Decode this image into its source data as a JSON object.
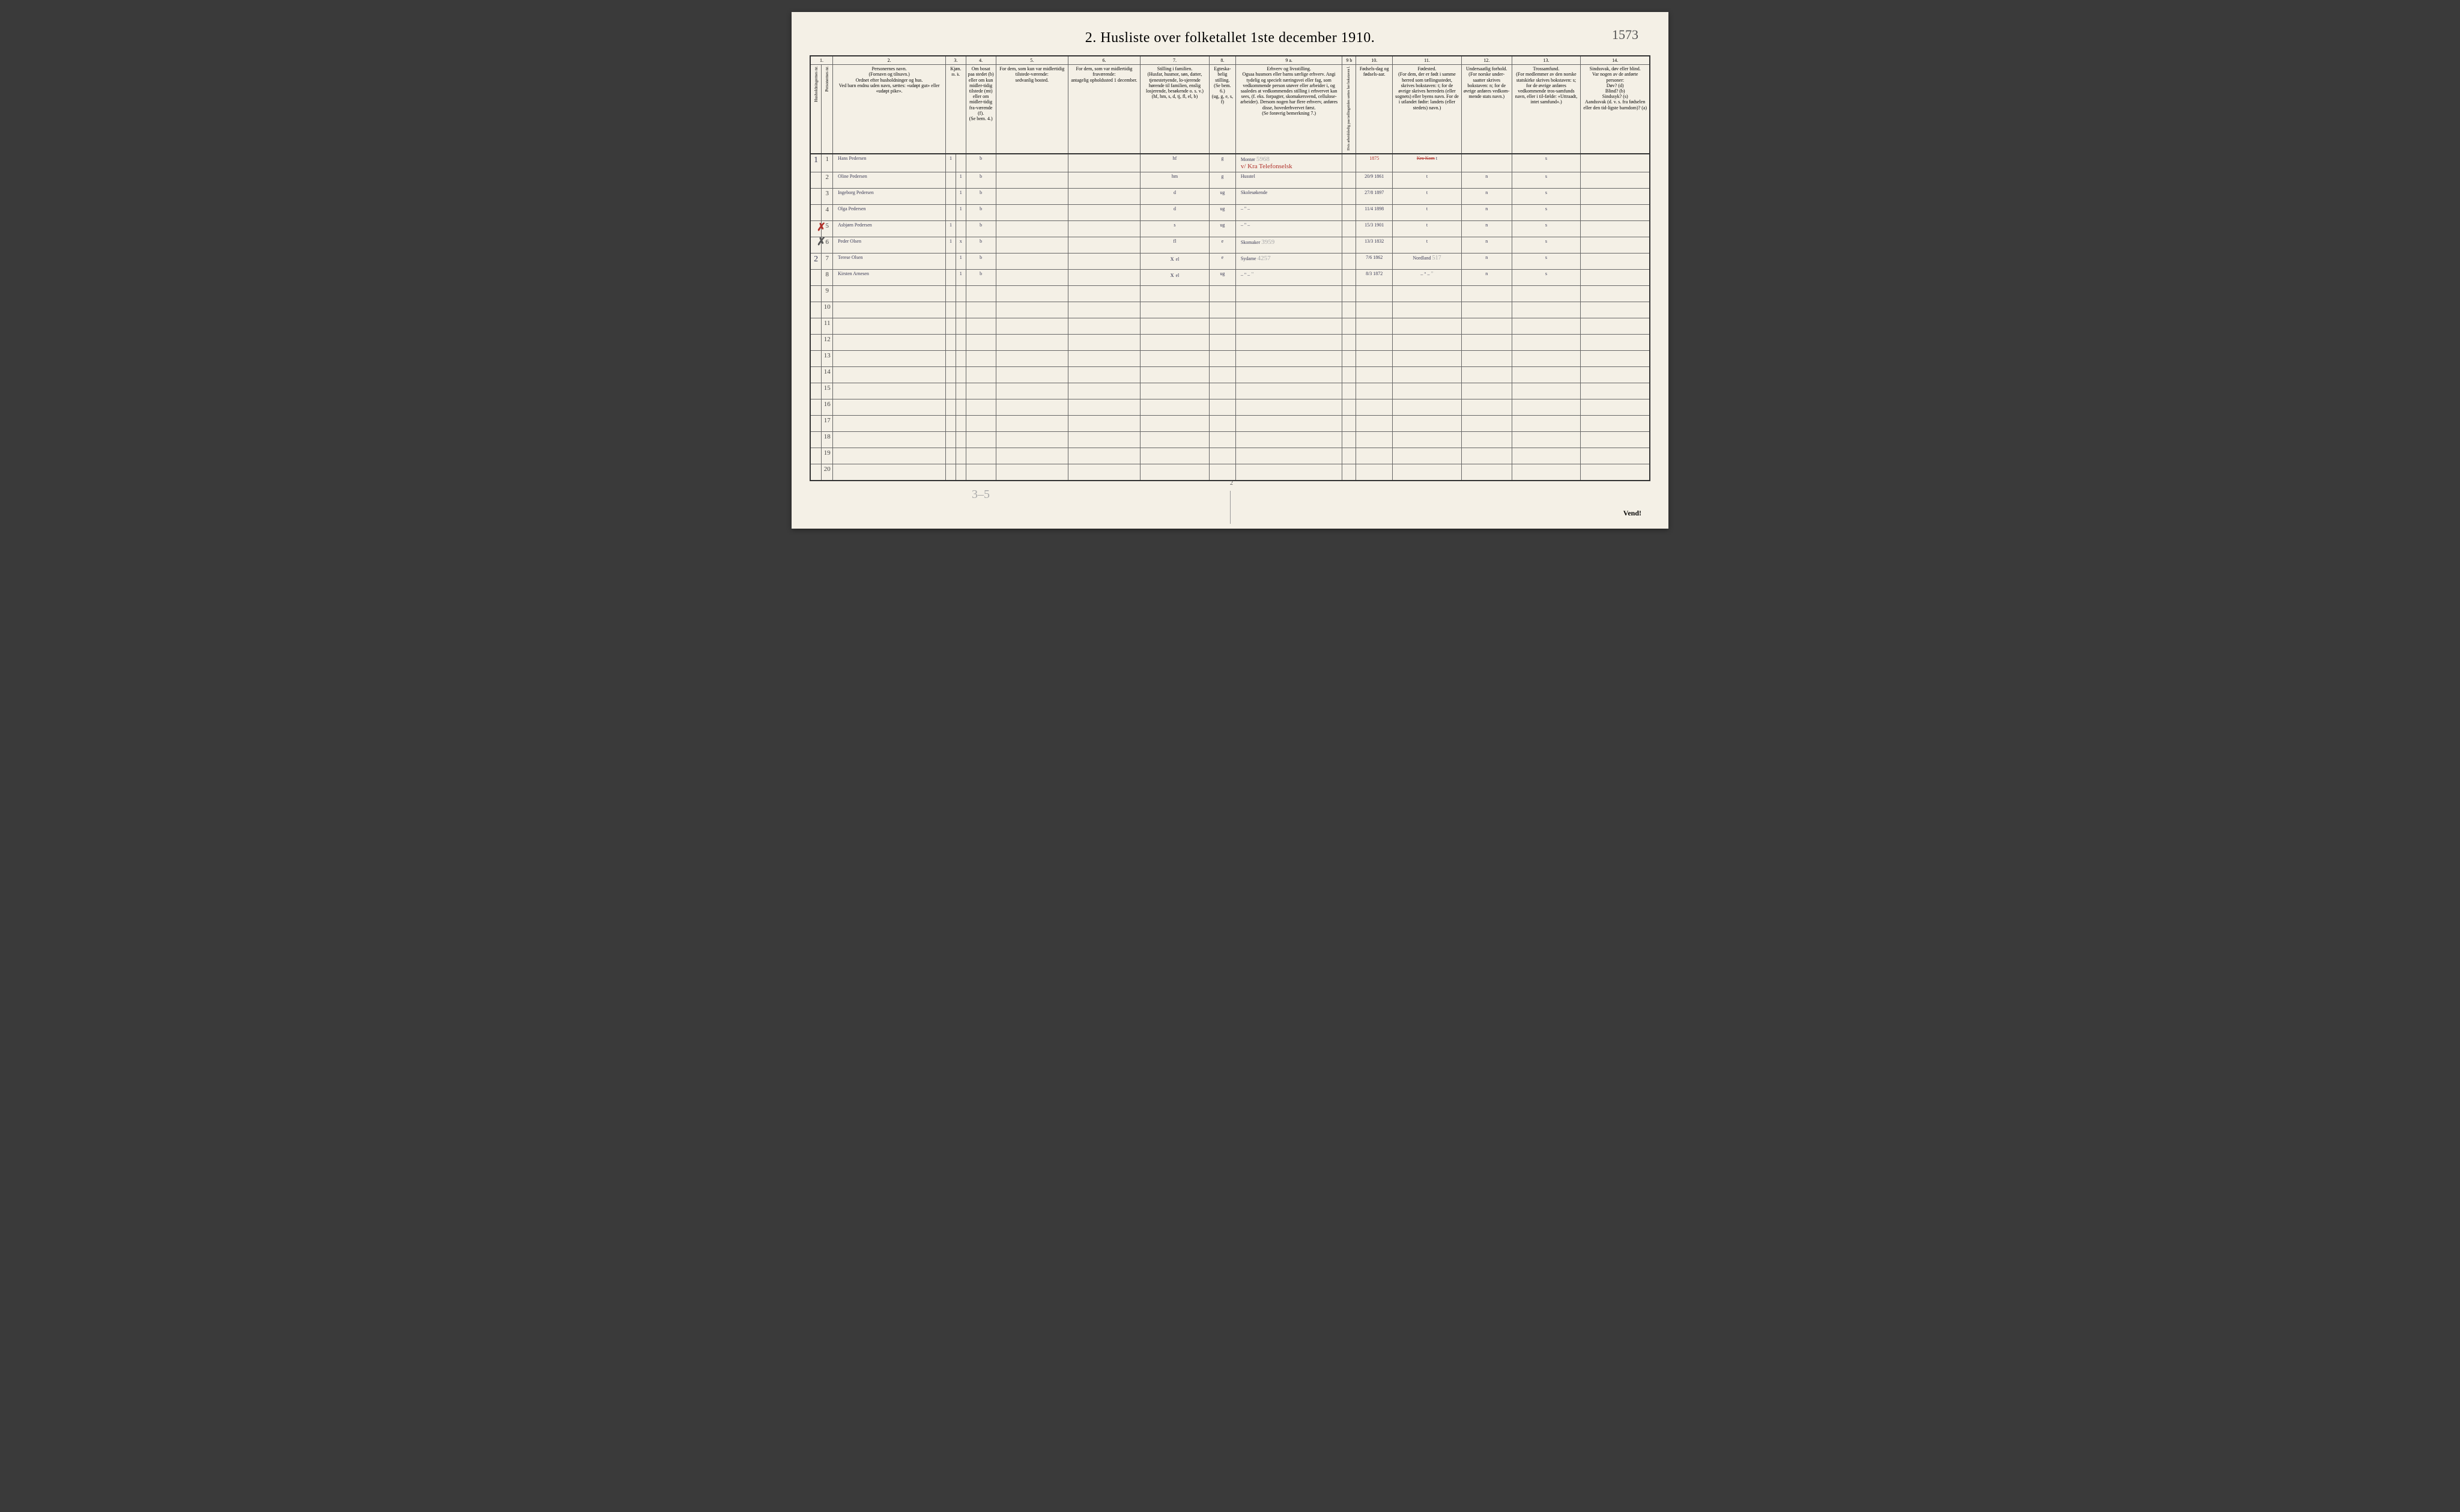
{
  "title": "2.  Husliste over folketallet 1ste december 1910.",
  "corner_note": "1573",
  "pencil_bottom": "3–5",
  "foot_pagenum": "2",
  "vend": "Vend!",
  "col_numbers": [
    "1.",
    "2.",
    "3.",
    "4.",
    "5.",
    "6.",
    "7.",
    "8.",
    "9 a.",
    "9 b",
    "10.",
    "11.",
    "12.",
    "13.",
    "14."
  ],
  "headers": {
    "c1a": "Husholdningernes nr.",
    "c1b": "Personernes nr.",
    "c2": "Personernes navn.\n(Fornavn og tilnavn.)\nOrdnet efter husholdninger og hus.\nVed barn endnu uden navn, sættes: «udøpt gut» eller «udøpt pike».",
    "c3a": "Kjøn.",
    "c3m": "Mand.",
    "c3k": "Kvinder.",
    "c3mk": "m.  k.",
    "c4": "Om bosat paa stedet (b) eller om kun midler-tidig tilstede (mt) eller om midler-tidig fra-værende (f).\n(Se bem. 4.)",
    "c5": "For dem, som kun var midlertidig tilstede-værende:\nsedvanlig bosted.",
    "c6": "For dem, som var midlertidig fraværende:\nantagelig opholdssted 1 december.",
    "c7": "Stilling i familien.\n(Husfar, husmor, søn, datter, tjenestetyende, lo-sjerende hørende til familien, enslig losjerende, besøkende o. s. v.)\n(hf, hm, s, d, tj, fl, el, b)",
    "c8": "Egteska-belig stilling.\n(Se bem. 6.)\n(ug, g, e, s, f)",
    "c9a": "Erhverv og livsstilling.\nOgsaa husmors eller barns særlige erhverv. Angi tydelig og specielt næringsvei eller fag, som vedkommende person utøver eller arbeider i, og saaledes at vedkommendes stilling i erhvervet kan sees, (f. eks. forpagter, skomakersvend, cellulose-arbeider). Dersom nogen har flere erhverv, anføres disse, hovederhvervet først.\n(Se forøvrig bemerkning 7.)",
    "c9b": "Hvis arbeidsledig paa tællingstiden sættes her bokstaven l.",
    "c10": "Fødsels-dag og fødsels-aar.",
    "c11": "Fødested.\n(For dem, der er født i samme herred som tællingsstedet, skrives bokstaven: t; for de øvrige skrives herredets (eller sognets) eller byens navn. For de i utlandet fødte: landets (eller stedets) navn.)",
    "c12": "Undersaatlig forhold.\n(For norske under-saatter skrives bokstaven: n; for de øvrige anføres vedkom-mende stats navn.)",
    "c13": "Trossamfund.\n(For medlemmer av den norske statskirke skrives bokstaven: s; for de øvrige anføres vedkommende tros-samfunds navn, eller i til-fælde: «Uttraadt, intet samfund».)",
    "c14": "Sindssvak, døv eller blind.\nVar nogen av de anførte personer:\nDøv?        (d)\nBlind?      (b)\nSindssyk?  (s)\nAandssvak (d. v. s. fra fødselen eller den tid-ligste barndom)?  (a)"
  },
  "rows": [
    {
      "hh": "1",
      "pn": "1",
      "name": "Hans Pedersen",
      "m": "1",
      "k": "",
      "res": "b",
      "c5": "",
      "c6": "",
      "fam": "hf",
      "ms": "g",
      "occ": "Montør",
      "occ_red": "v/ Kra Telefonselsk",
      "occ_pencil": "5968",
      "c9b": "",
      "dob_red": "1875",
      "dob": "",
      "birthplace_red": "Kra Kom",
      "birthplace_x": "t",
      "nat": "",
      "rel": "s",
      "c14": ""
    },
    {
      "hh": "",
      "pn": "2",
      "name": "Oline Pedersen",
      "m": "",
      "k": "1",
      "res": "b",
      "c5": "",
      "c6": "",
      "fam": "hm",
      "ms": "g",
      "occ": "Husstel",
      "c9b": "",
      "dob": "20/9 1861",
      "birthplace": "t",
      "nat": "n",
      "rel": "s",
      "c14": ""
    },
    {
      "hh": "",
      "pn": "3",
      "name": "Ingeborg Pedersen",
      "m": "",
      "k": "1",
      "res": "b",
      "c5": "",
      "c6": "",
      "fam": "d",
      "ms": "ug",
      "occ": "Skolesøkende",
      "c9b": "",
      "dob": "27/8 1897",
      "birthplace": "t",
      "nat": "n",
      "rel": "s",
      "c14": ""
    },
    {
      "hh": "",
      "pn": "4",
      "name": "Olga Pedersen",
      "m": "",
      "k": "1",
      "res": "b",
      "c5": "",
      "c6": "",
      "fam": "d",
      "ms": "ug",
      "occ": "– \" –",
      "c9b": "",
      "dob": "11/4 1898",
      "birthplace": "t",
      "nat": "n",
      "rel": "s",
      "c14": ""
    },
    {
      "hh": "",
      "pn": "5",
      "name": "Asbjørn Pedersen",
      "m": "1",
      "k": "",
      "res": "b",
      "c5": "",
      "c6": "",
      "fam": "s",
      "ms": "ug",
      "occ": "– \" –",
      "c9b": "",
      "dob": "15/3 1901",
      "birthplace": "t",
      "nat": "n",
      "rel": "s",
      "c14": ""
    },
    {
      "hh": "",
      "pn": "6",
      "name": "Peder Olsen",
      "m": "1",
      "k": "x",
      "res": "b",
      "c5": "",
      "c6": "",
      "fam": "fl",
      "ms": "e",
      "occ": "Skomaker",
      "occ_pencil": "3959",
      "c9b": "",
      "dob": "13/3 1832",
      "birthplace": "t",
      "nat": "n",
      "rel": "s",
      "c14": ""
    },
    {
      "hh": "2",
      "hh_red_x": true,
      "pn": "7",
      "name": "Terese Olsen",
      "m": "",
      "k": "1",
      "res": "b",
      "c5": "",
      "c6": "",
      "fam": "el",
      "fam_x": "x",
      "ms": "e",
      "occ": "Sydame",
      "occ_pencil": "4257",
      "c9b": "",
      "dob": "7/6 1862",
      "birthplace": "Nordland",
      "birthplace_pencil": "517",
      "nat": "n",
      "rel": "s",
      "c14": ""
    },
    {
      "hh": "",
      "hh_x": true,
      "pn": "8",
      "name": "Kirsten Arnesen",
      "m": "",
      "k": "1",
      "res": "b",
      "c5": "",
      "c6": "",
      "fam": "el",
      "fam_x": "x",
      "ms": "ug",
      "occ": "– \" –",
      "occ_pencil": "\"",
      "c9b": "",
      "dob": "8/3 1872",
      "birthplace": "– \" –",
      "birthplace_pencil": "\"",
      "nat": "n",
      "rel": "s",
      "c14": ""
    }
  ],
  "empty_rows": [
    "9",
    "10",
    "11",
    "12",
    "13",
    "14",
    "15",
    "16",
    "17",
    "18",
    "19",
    "20"
  ],
  "colwidths": {
    "c1a": 18,
    "c1b": 18,
    "c2": 180,
    "c3m": 16,
    "c3k": 16,
    "c4": 48,
    "c5": 115,
    "c6": 115,
    "c7": 110,
    "c8": 42,
    "c9a": 170,
    "c9b": 22,
    "c10": 58,
    "c11": 110,
    "c12": 80,
    "c13": 110,
    "c14": 110
  },
  "colors": {
    "paper": "#f4f0e6",
    "ink": "#333",
    "script": "#3a3a55",
    "red": "#b0302a",
    "pencil": "#aaa"
  }
}
